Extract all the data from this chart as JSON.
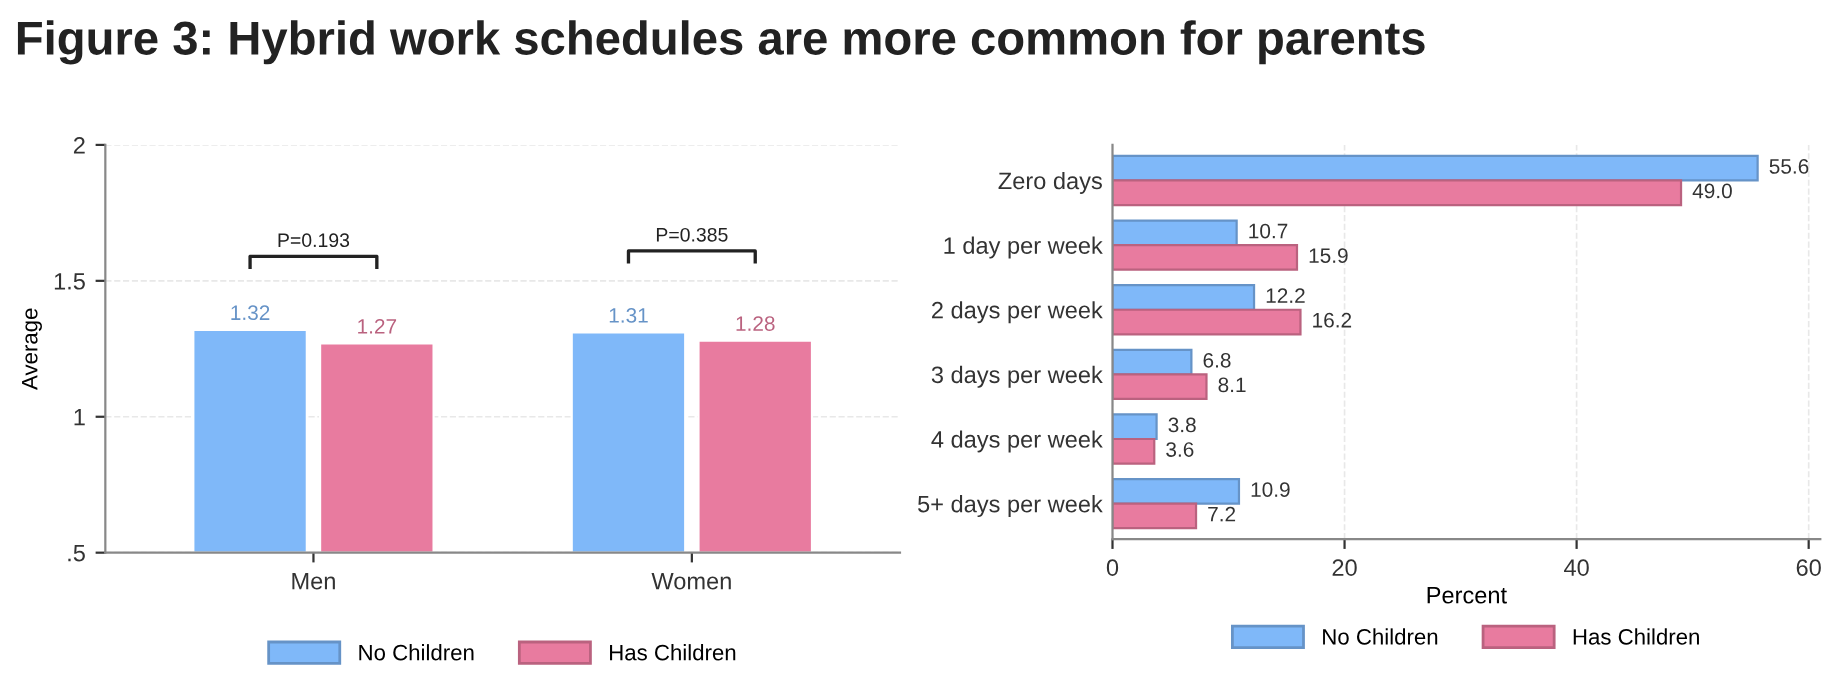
{
  "chart_data": [
    {
      "type": "bar",
      "title": "Figure 3: Hybrid work schedules are more common for parents",
      "ylabel": "Average",
      "categories": [
        "Men",
        "Women"
      ],
      "series": [
        {
          "name": "No Children",
          "color": "#7fb8f9",
          "values": [
            1.32,
            1.31
          ]
        },
        {
          "name": "Has Children",
          "color": "#e87b9f",
          "values": [
            1.27,
            1.28
          ]
        }
      ],
      "ylim": [
        0.5,
        2
      ],
      "yticks": [
        {
          "value": 0.5,
          "label": ".5"
        },
        1,
        1.5,
        2
      ],
      "grid": "y",
      "legend": "bottom",
      "data_labels": true,
      "annotations": [
        "P=0.193",
        "P=0.385"
      ]
    },
    {
      "type": "bar",
      "orientation": "horizontal",
      "xlabel": "Percent",
      "categories": [
        "Zero days",
        "1 day per week",
        "2 days per week",
        "3 days per week",
        "4 days per week",
        "5+ days per week"
      ],
      "series": [
        {
          "name": "No Children",
          "color": "#7fb8f9",
          "values": [
            55.6,
            10.7,
            12.2,
            6.8,
            3.8,
            10.9
          ],
          "value_labels": [
            "55.6",
            "10.7",
            "12.2",
            "6.8",
            "3.8",
            "10.9"
          ]
        },
        {
          "name": "Has Children",
          "color": "#e87b9f",
          "values": [
            49.0,
            15.9,
            16.2,
            8.1,
            3.6,
            7.2
          ],
          "value_labels": [
            "49.0",
            "15.9",
            "16.2",
            "8.1",
            "3.6",
            "7.2"
          ]
        }
      ],
      "xlim": [
        0,
        61
      ],
      "xticks": [
        0,
        20,
        40,
        60
      ],
      "grid": "x",
      "legend": "bottom"
    }
  ]
}
